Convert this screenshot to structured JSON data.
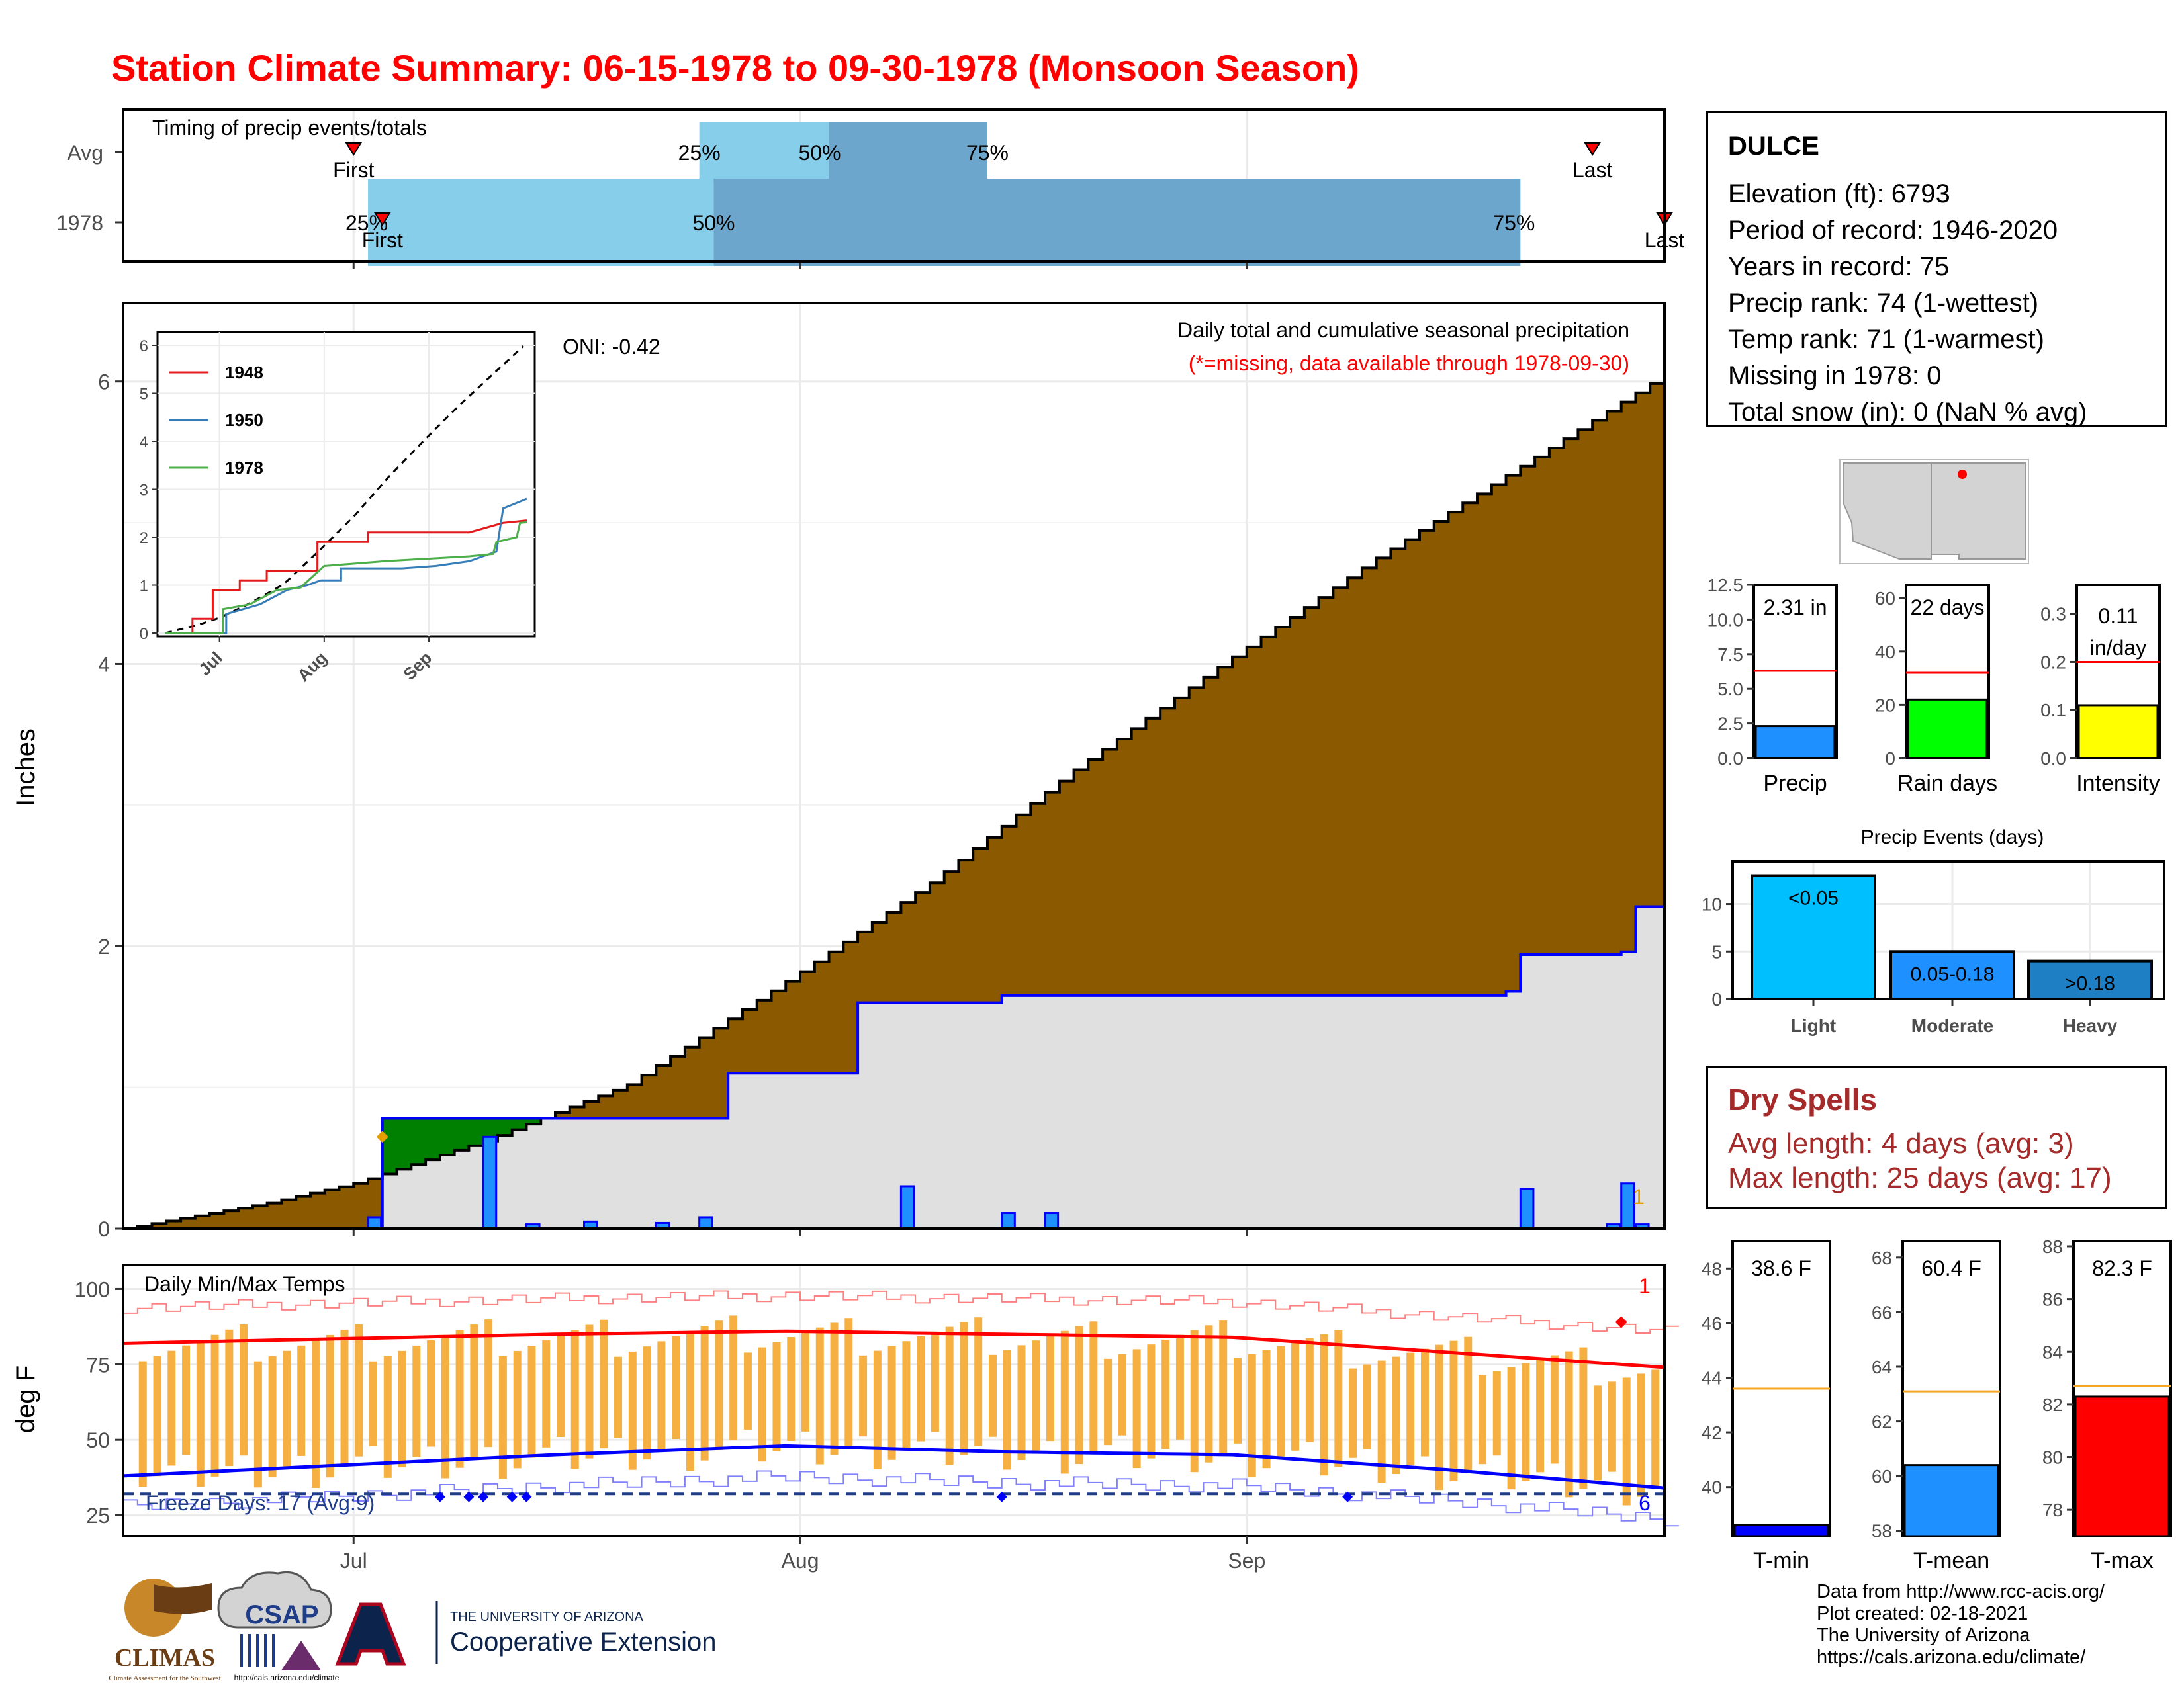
{
  "title": "Station Climate Summary: 06-15-1978 to 09-30-1978 (Monsoon Season)",
  "timing": {
    "label": "Timing of precip events/totals",
    "rows": [
      {
        "name": "Avg",
        "first": "07-01",
        "p25": "07-25",
        "p50": "08-03",
        "p75": "08-14",
        "last": "09-25"
      },
      {
        "name": "1978",
        "first": "07-03",
        "p25": "07-02",
        "p50": "07-26",
        "p75": "09-20",
        "last": "09-30"
      }
    ],
    "first_label": "First",
    "last_label": "Last",
    "pct_labels": [
      "25%",
      "50%",
      "75%"
    ]
  },
  "colors": {
    "title": "#ff0000",
    "light_blue": "#87ceeb",
    "mid_blue": "#6ca6cd",
    "brown": "#8b5a00",
    "green": "#008000",
    "grey_fill": "#e0e0e0",
    "precip_blue": "#1e90ff",
    "line_blue": "#0000ff",
    "red": "#ff0000",
    "orange": "#f5b041",
    "yellow": "#ffff00",
    "lime": "#00ff00",
    "dry_red": "#a52a2a",
    "cyan": "#00bfff",
    "dodger": "#1e90ff"
  },
  "station": {
    "name": "DULCE",
    "lines": [
      "Elevation (ft): 6793",
      "Period of record: 1946-2020",
      "Years in record: 75",
      "Precip rank: 74 (1-wettest)",
      "Temp rank: 71 (1-warmest)",
      "Missing in 1978: 0",
      "Total snow (in): 0 (NaN % avg)"
    ]
  },
  "precip_panel": {
    "ylabel": "Inches",
    "yticks": [
      "0",
      "2",
      "4",
      "6"
    ],
    "oni": "ONI: -0.42",
    "heading": "Daily total and cumulative seasonal precipitation",
    "note": "(*=missing, data available through 1978-09-30)",
    "corner_count": "1"
  },
  "temp_panel": {
    "ylabel": "deg F",
    "yticks": [
      "25",
      "50",
      "75",
      "100"
    ],
    "heading": "Daily Min/Max Temps",
    "freeze": "Freeze Days: 17 (Avg:9)",
    "max_count": "1",
    "min_count": "6"
  },
  "xaxis": {
    "ticks": [
      "Jul",
      "Aug",
      "Sep"
    ]
  },
  "inset": {
    "yticks": [
      "0",
      "1",
      "2",
      "3",
      "4",
      "5",
      "6"
    ],
    "xticks": [
      "Jul",
      "Aug",
      "Sep"
    ],
    "legend": [
      "1948",
      "1950",
      "1978"
    ]
  },
  "summary_bars": [
    {
      "label": "Precip",
      "value_text": "2.31 in",
      "ticks": [
        "0.0",
        "2.5",
        "5.0",
        "7.5",
        "10.0",
        "12.5"
      ]
    },
    {
      "label": "Rain days",
      "value_text": "22 days",
      "ticks": [
        "0",
        "20",
        "40",
        "60"
      ]
    },
    {
      "label": "Intensity",
      "value_text": "0.11 in/day",
      "value_line1": "0.11",
      "value_line2": "in/day",
      "ticks": [
        "0.0",
        "0.1",
        "0.2",
        "0.3"
      ]
    }
  ],
  "events": {
    "title": "Precip Events (days)",
    "yticks": [
      "0",
      "5",
      "10"
    ],
    "bars": [
      {
        "label": "Light",
        "text": "<0.05",
        "value": 13
      },
      {
        "label": "Moderate",
        "text": "0.05-0.18",
        "value": 5
      },
      {
        "label": "Heavy",
        "text": ">0.18",
        "value": 4
      }
    ]
  },
  "dry_spells": {
    "title": "Dry Spells",
    "avg": "Avg length: 4 days (avg: 3)",
    "max": "Max length: 25 days (avg: 17)"
  },
  "temp_bars": [
    {
      "label": "T-min",
      "value_text": "38.6 F",
      "ticks": [
        "40",
        "42",
        "44",
        "46",
        "48"
      ]
    },
    {
      "label": "T-mean",
      "value_text": "60.4 F",
      "ticks": [
        "58",
        "60",
        "62",
        "64",
        "66",
        "68"
      ]
    },
    {
      "label": "T-max",
      "value_text": "82.3 F",
      "ticks": [
        "78",
        "80",
        "82",
        "84",
        "86",
        "88"
      ]
    }
  ],
  "credits": [
    "Data from http://www.rcc-acis.org/",
    "Plot created: 02-18-2021",
    "The University of Arizona",
    "https://cals.arizona.edu/climate/"
  ],
  "logos": {
    "climas": "CLIMAS",
    "climas_sub": "Climate Assessment for the Southwest",
    "csap": "CSAP",
    "csap_url": "http://cals.arizona.edu/climate",
    "ua_line1": "THE UNIVERSITY OF ARIZONA",
    "ua_line2": "Cooperative Extension"
  },
  "chart_data": [
    {
      "type": "bar",
      "title": "Timing of precip events/totals",
      "categories": [
        "Avg",
        "1978"
      ],
      "series": [
        {
          "name": "25%",
          "values": [
            "07-25",
            "07-02"
          ]
        },
        {
          "name": "50%",
          "values": [
            "08-03",
            "07-26"
          ]
        },
        {
          "name": "75%",
          "values": [
            "08-14",
            "09-20"
          ]
        }
      ]
    },
    {
      "type": "area",
      "title": "Daily total and cumulative seasonal precipitation",
      "ylabel": "Inches",
      "ylim": [
        0,
        6.5
      ],
      "xlim": [
        "1978-06-15",
        "1978-09-30"
      ],
      "series": [
        {
          "name": "avg cumulative",
          "x": [
            "06-15",
            "06-25",
            "07-01",
            "07-10",
            "07-20",
            "07-31",
            "08-10",
            "08-20",
            "08-31",
            "09-10",
            "09-20",
            "09-30"
          ],
          "y": [
            0.0,
            0.18,
            0.32,
            0.62,
            1.02,
            1.75,
            2.45,
            3.25,
            4.05,
            4.75,
            5.4,
            6.05
          ]
        },
        {
          "name": "1978 cumulative",
          "x": [
            "06-15",
            "07-02",
            "07-03",
            "07-27",
            "08-05",
            "08-15",
            "09-19",
            "09-20",
            "09-27",
            "09-28",
            "09-30"
          ],
          "y": [
            0.0,
            0.0,
            0.78,
            1.1,
            1.6,
            1.65,
            1.68,
            1.94,
            1.96,
            2.28,
            2.31
          ]
        },
        {
          "name": "1978 daily",
          "x": [
            "07-02",
            "07-10",
            "07-13",
            "07-17",
            "07-22",
            "07-25",
            "08-08",
            "08-15",
            "08-18",
            "09-20",
            "09-26",
            "09-27",
            "09-28"
          ],
          "y": [
            0.08,
            0.65,
            0.03,
            0.05,
            0.04,
            0.08,
            0.3,
            0.11,
            0.11,
            0.28,
            0.03,
            0.32,
            0.03
          ]
        }
      ]
    },
    {
      "type": "line",
      "title": "Daily Min/Max Temps",
      "ylabel": "deg F",
      "ylim": [
        20,
        105
      ],
      "series": [
        {
          "name": "avg max",
          "x": [
            "06-15",
            "07-15",
            "07-31",
            "08-15",
            "08-31",
            "09-15",
            "09-30"
          ],
          "y": [
            82,
            85,
            86,
            85,
            84,
            79,
            74
          ]
        },
        {
          "name": "avg min",
          "x": [
            "06-15",
            "07-15",
            "07-31",
            "08-15",
            "08-31",
            "09-15",
            "09-30"
          ],
          "y": [
            38,
            45,
            48,
            46,
            45,
            40,
            34
          ]
        },
        {
          "name": "freeze",
          "x": [
            "06-15",
            "09-30"
          ],
          "y": [
            32,
            32
          ]
        }
      ]
    },
    {
      "type": "bar",
      "title": "Precip Events (days)",
      "categories": [
        "Light",
        "Moderate",
        "Heavy"
      ],
      "values": [
        13,
        5,
        4
      ]
    },
    {
      "type": "bar",
      "categories": [
        "Precip",
        "Rain days",
        "Intensity"
      ],
      "values": [
        2.31,
        22,
        0.11
      ],
      "averages": [
        6.3,
        32,
        0.2
      ]
    },
    {
      "type": "bar",
      "categories": [
        "T-min",
        "T-mean",
        "T-max"
      ],
      "values": [
        38.6,
        60.4,
        82.3
      ],
      "averages": [
        43.6,
        63.1,
        82.7
      ]
    }
  ]
}
